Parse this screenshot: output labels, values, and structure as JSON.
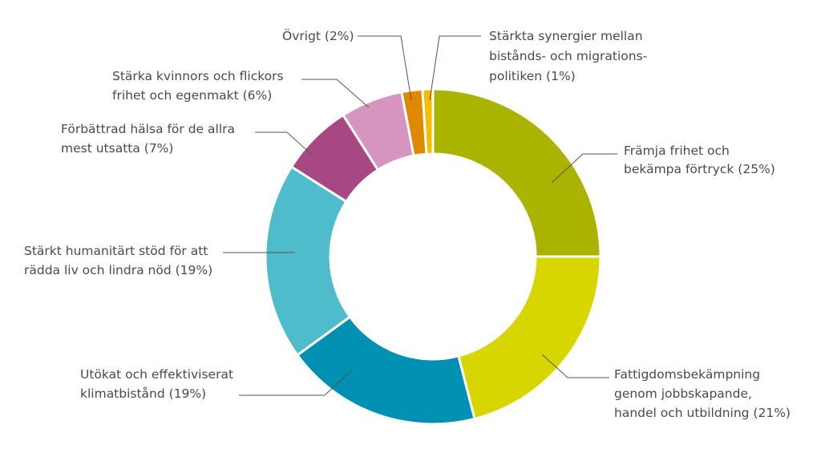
{
  "chart_data": {
    "type": "pie",
    "donut": true,
    "start": "12 o'clock, clockwise",
    "slices": [
      {
        "label": [
          "Främja frihet och",
          "bekämpa förtryck (25%)"
        ],
        "value": 25,
        "color": "#a9b300"
      },
      {
        "label": [
          "Fattigdomsbekämpning",
          "genom jobbskapande,",
          "handel och utbildning (21%)"
        ],
        "value": 21,
        "color": "#d8d600"
      },
      {
        "label": [
          "Utökat och effektiviserat",
          "klimatbistånd (19%)"
        ],
        "value": 19,
        "color": "#0090b1"
      },
      {
        "label": [
          "Stärkt humanitärt stöd för att",
          "rädda liv och lindra nöd (19%)"
        ],
        "value": 19,
        "color": "#4fbccb"
      },
      {
        "label": [
          "Förbättrad hälsa för de allra",
          "mest utsatta (7%)"
        ],
        "value": 7,
        "color": "#a84882"
      },
      {
        "label": [
          "Stärka kvinnors och flickors",
          "frihet och egenmakt (6%)"
        ],
        "value": 6,
        "color": "#d595c0"
      },
      {
        "label": [
          "Övrigt (2%)"
        ],
        "value": 2,
        "color": "#e08800"
      },
      {
        "label": [
          "Stärkta synergier mellan",
          "bistånds- och migrations-",
          "politiken (1%)"
        ],
        "value": 1,
        "color": "#f7bb00"
      }
    ]
  }
}
